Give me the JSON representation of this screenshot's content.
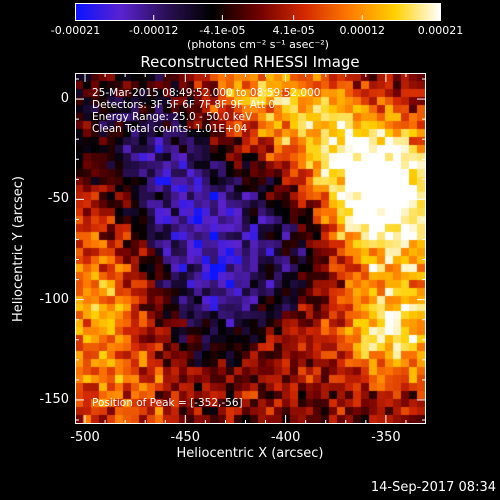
{
  "colorbar": {
    "tick_labels": [
      "-0.00021",
      "-0.00012",
      "-4.1e-05",
      "4.1e-05",
      "0.00012",
      "0.00021"
    ],
    "unit_label": "(photons cm⁻² s⁻¹ asec⁻²)",
    "colors": [
      "#0a14ff",
      "#5a22d0",
      "#2a0f55",
      "#000000",
      "#6e0000",
      "#d22800",
      "#ff7a00",
      "#ffd000",
      "#ffffff"
    ]
  },
  "info": {
    "time_range": "25-Mar-2015 08:49:52.000 to 08:59:52.000",
    "detectors": "Detectors: 3F 5F 6F 7F 8F 9F, Att 0",
    "energy": "Energy Range: 25.0 - 50.0 keV",
    "clean": "Clean     Total counts: 1.01E+04",
    "peak": "Position of Peak = [-352,-56]"
  },
  "footer": {
    "timestamp": "14-Sep-2017 08:34"
  },
  "chart_data": {
    "type": "heatmap",
    "title": "Reconstructed RHESSI Image",
    "xlabel": "Heliocentric X (arcsec)",
    "ylabel": "Heliocentric Y (arcsec)",
    "xlim": [
      -505,
      -330
    ],
    "ylim": [
      -162,
      13
    ],
    "xticks": [
      -500,
      -450,
      -400,
      -350
    ],
    "yticks": [
      0,
      -50,
      -100,
      -150
    ],
    "colorbar_range": [
      -0.00021,
      0.00021
    ],
    "peak_position": [
      -352,
      -56
    ],
    "hot_regions": [
      {
        "x": -345,
        "y": -115,
        "level": 0.95
      },
      {
        "x": -352,
        "y": -56,
        "level": 1.0
      },
      {
        "x": -355,
        "y": -30,
        "level": 0.75
      },
      {
        "x": -493,
        "y": -105,
        "level": 0.7
      },
      {
        "x": -490,
        "y": -60,
        "level": 0.45
      },
      {
        "x": -420,
        "y": 5,
        "level": 0.55
      },
      {
        "x": -390,
        "y": -10,
        "level": 0.5
      },
      {
        "x": -480,
        "y": -150,
        "level": 0.45
      },
      {
        "x": -410,
        "y": -130,
        "level": 0.35
      }
    ],
    "cold_regions": [
      {
        "x": -455,
        "y": -60,
        "level": -0.55
      },
      {
        "x": -430,
        "y": -105,
        "level": -0.45
      },
      {
        "x": -400,
        "y": -65,
        "level": -0.3
      },
      {
        "x": -465,
        "y": -20,
        "level": -0.35
      }
    ]
  }
}
